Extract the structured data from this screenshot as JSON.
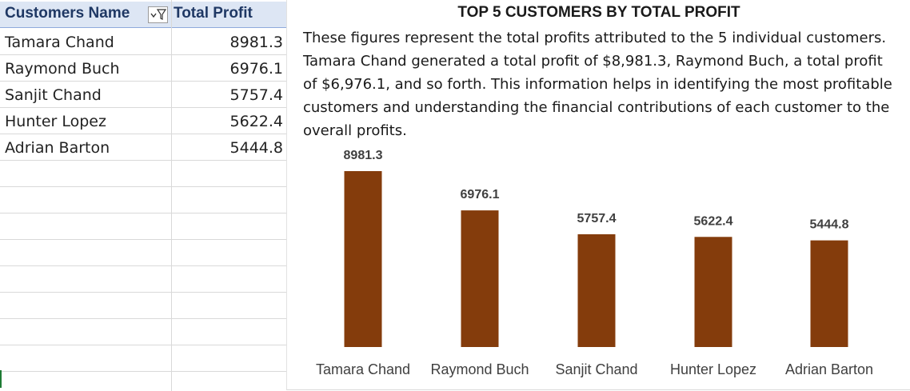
{
  "table": {
    "headers": {
      "name": "Customers Name",
      "profit": "Total Profit"
    },
    "rows": [
      {
        "name": "Tamara Chand",
        "profit": "8981.3"
      },
      {
        "name": "Raymond Buch",
        "profit": "6976.1"
      },
      {
        "name": "Sanjit Chand",
        "profit": "5757.4"
      },
      {
        "name": "Hunter Lopez",
        "profit": "5622.4"
      },
      {
        "name": "Adrian Barton",
        "profit": "5444.8"
      }
    ]
  },
  "description": "These figures represent the total profits attributed to the 5 individual customers. Tamara Chand generated a total profit of $8,981.3, Raymond Buch, a total profit of $6,976.1, and so forth. This information helps in identifying the most profitable customers and understanding the financial contributions of each customer to the overall profits.",
  "chart_data": {
    "type": "bar",
    "title": "TOP 5 CUSTOMERS BY TOTAL PROFIT",
    "categories": [
      "Tamara Chand",
      "Raymond Buch",
      "Sanjit Chand",
      "Hunter Lopez",
      "Adrian Barton"
    ],
    "values": [
      8981.3,
      6976.1,
      5757.4,
      5622.4,
      5444.8
    ],
    "data_labels": [
      "8981.3",
      "6976.1",
      "5757.4",
      "5622.4",
      "5444.8"
    ],
    "xlabel": "",
    "ylabel": "",
    "ylim": [
      0,
      8981.3
    ],
    "grid": false,
    "legend": "none",
    "bar_color": "#843c0c"
  },
  "colors": {
    "header_bg": "#dde6f4",
    "header_text": "#1f3864",
    "bar": "#843c0c"
  },
  "icons": {
    "filter": "filter-dropdown-icon"
  }
}
